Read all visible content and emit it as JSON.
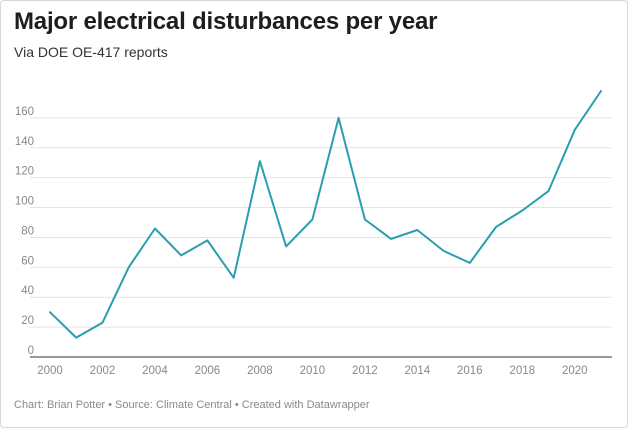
{
  "title": "Major electrical disturbances per year",
  "subtitle": "Via DOE OE-417 reports",
  "footer": "Chart: Brian Potter • Source: Climate Central • Created with Datawrapper",
  "colors": {
    "line": "#2a9eb0",
    "grid": "#e4e4e4",
    "baseline": "#333333",
    "tick_text": "#888888"
  },
  "chart_data": {
    "type": "line",
    "title": "Major electrical disturbances per year",
    "subtitle": "Via DOE OE-417 reports",
    "xlabel": "",
    "ylabel": "",
    "x": [
      2000,
      2001,
      2002,
      2003,
      2004,
      2005,
      2006,
      2007,
      2008,
      2009,
      2010,
      2011,
      2012,
      2013,
      2014,
      2015,
      2016,
      2017,
      2018,
      2019,
      2020,
      2021
    ],
    "series": [
      {
        "values": [
          30,
          13,
          23,
          60,
          86,
          68,
          78,
          53,
          131,
          74,
          92,
          160,
          92,
          79,
          85,
          71,
          63,
          87,
          98,
          111,
          152,
          178
        ]
      }
    ],
    "xlim": [
      2000,
      2021
    ],
    "ylim": [
      0,
      180
    ],
    "x_ticks": [
      2000,
      2002,
      2004,
      2006,
      2008,
      2010,
      2012,
      2014,
      2016,
      2018,
      2020
    ],
    "y_ticks": [
      0,
      20,
      40,
      60,
      80,
      100,
      120,
      140,
      160
    ],
    "grid": true,
    "legend": "none"
  }
}
